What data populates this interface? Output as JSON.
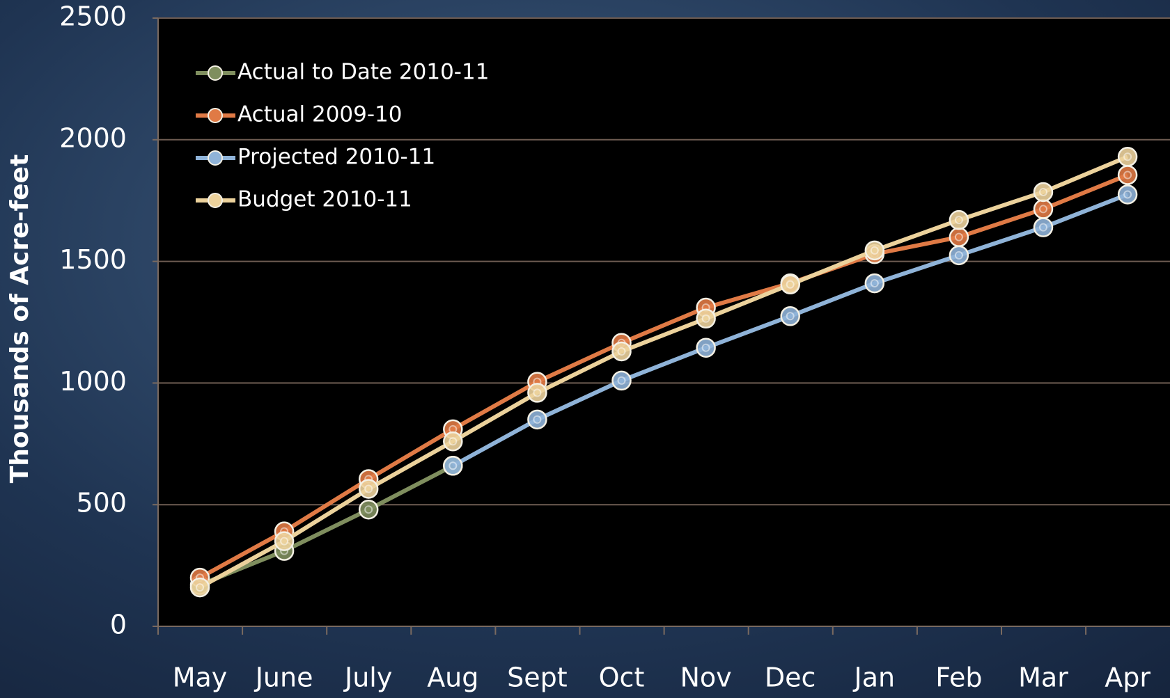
{
  "chart_data": {
    "type": "line",
    "y_label": "Thousands of Acre-feet",
    "categories": [
      "May",
      "June",
      "July",
      "Aug",
      "Sept",
      "Oct",
      "Nov",
      "Dec",
      "Jan",
      "Feb",
      "Mar",
      "Apr"
    ],
    "series": [
      {
        "name": "Actual to Date 2010-11",
        "color": "#7f8e5e",
        "values": [
          170,
          310,
          480,
          660,
          null,
          null,
          null,
          null,
          null,
          null,
          null,
          null
        ]
      },
      {
        "name": "Actual 2009-10",
        "color": "#e07a45",
        "values": [
          200,
          390,
          605,
          810,
          1005,
          1165,
          1310,
          1410,
          1530,
          1600,
          1715,
          1855
        ]
      },
      {
        "name": "Projected 2010-11",
        "color": "#8fb3d8",
        "values": [
          null,
          null,
          null,
          660,
          850,
          1010,
          1145,
          1275,
          1410,
          1525,
          1640,
          1775
        ]
      },
      {
        "name": "Budget 2010-11",
        "color": "#ecd29c",
        "values": [
          160,
          350,
          565,
          760,
          960,
          1130,
          1265,
          1405,
          1545,
          1670,
          1785,
          1930
        ]
      }
    ],
    "ylim": [
      0,
      2500
    ],
    "yticks": [
      0,
      500,
      1000,
      1500,
      2000,
      2500
    ],
    "grid": true,
    "legend": "upper left"
  }
}
